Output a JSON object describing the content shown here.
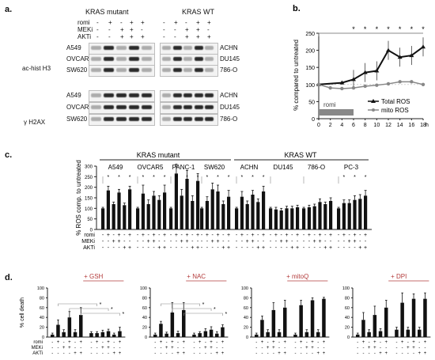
{
  "panel_a": {
    "letter": "a.",
    "mutant_header": "KRAS mutant",
    "wt_header": "KRAS WT",
    "treatments": [
      "romi",
      "MEKi",
      "AKTi"
    ],
    "section_labels": [
      "ac-hist H3",
      "γ H2AX"
    ],
    "mutant_lines": [
      "A549",
      "OVCAR5",
      "SW620"
    ],
    "wt_lines": [
      "ACHN",
      "DU145",
      "786-O"
    ],
    "signs_romi": [
      "-",
      "+",
      "-",
      "+",
      "+",
      "-",
      "+"
    ],
    "signs_meki": [
      "-",
      "-",
      "+",
      "+",
      "-",
      "+",
      "+"
    ],
    "signs_akti": [
      "-",
      "-",
      "+",
      "+",
      "+",
      "-",
      "+"
    ]
  },
  "chart_data": [
    {
      "panel": "b.",
      "type": "line",
      "ylabel": "% compared to untreated",
      "xunit": "h",
      "x": [
        0,
        2,
        4,
        6,
        8,
        10,
        12,
        14,
        16,
        18
      ],
      "xlim": [
        0,
        18
      ],
      "ylim": [
        0,
        250
      ],
      "yticks": [
        0,
        50,
        100,
        150,
        200,
        250
      ],
      "annotation": "romi",
      "significance": [
        "*",
        "*",
        "*",
        "*",
        "*",
        "*",
        "*",
        "*"
      ],
      "series": [
        {
          "name": "Total ROS",
          "values": [
            100,
            null,
            105,
            115,
            135,
            140,
            200,
            180,
            185,
            210
          ],
          "color": "#111111"
        },
        {
          "name": "mito ROS",
          "values": [
            100,
            90,
            88,
            90,
            95,
            98,
            102,
            108,
            108,
            100
          ],
          "color": "#888888"
        }
      ]
    },
    {
      "panel": "c.",
      "type": "bar",
      "ylabel": "% ROS comp. to untreated",
      "ylim": [
        0,
        300
      ],
      "yticks": [
        0,
        50,
        100,
        150,
        200,
        250,
        300
      ],
      "group_headers": [
        "KRAS mutant",
        "KRAS WT"
      ],
      "cell_lines": [
        "A549",
        "OVCAR5",
        "PANC-1",
        "SW620",
        "ACHN",
        "DU145",
        "786-O",
        "PC-3"
      ],
      "values": [
        [
          100,
          185,
          120,
          175,
          115,
          190
        ],
        [
          100,
          170,
          120,
          160,
          140,
          175
        ],
        [
          100,
          265,
          160,
          240,
          135,
          230
        ],
        [
          100,
          135,
          190,
          180,
          120,
          155
        ],
        [
          100,
          155,
          120,
          165,
          130,
          180
        ],
        [
          100,
          95,
          90,
          100,
          100,
          105
        ],
        [
          100,
          105,
          110,
          130,
          120,
          135
        ],
        [
          100,
          125,
          125,
          140,
          145,
          160
        ]
      ],
      "errors": [
        [
          5,
          20,
          10,
          15,
          10,
          15
        ],
        [
          5,
          40,
          20,
          20,
          20,
          35
        ],
        [
          5,
          45,
          30,
          40,
          25,
          35
        ],
        [
          5,
          20,
          30,
          30,
          15,
          30
        ],
        [
          5,
          25,
          15,
          20,
          15,
          25
        ],
        [
          5,
          10,
          10,
          10,
          10,
          10
        ],
        [
          5,
          10,
          10,
          15,
          10,
          15
        ],
        [
          5,
          15,
          15,
          20,
          20,
          25
        ]
      ],
      "treatments": [
        "romi",
        "MEKi",
        "AKTi"
      ],
      "signs_romi": [
        "-",
        "+",
        "-",
        "+",
        "-",
        "+"
      ],
      "signs_meki": [
        "-",
        "-",
        "+",
        "+",
        "-",
        "-"
      ],
      "signs_akti": [
        "-",
        "-",
        "-",
        "-",
        "+",
        "+"
      ]
    },
    {
      "panel": "d.",
      "type": "bar",
      "ylabel": "% cell death",
      "ylim": [
        0,
        100
      ],
      "yticks": [
        0,
        20,
        40,
        60,
        80,
        100
      ],
      "subpanels": [
        {
          "title": "+ GSH",
          "values": [
            5,
            25,
            10,
            40,
            10,
            45,
            8,
            8,
            10,
            12,
            5,
            12
          ],
          "errors": [
            3,
            10,
            5,
            12,
            5,
            15,
            3,
            3,
            4,
            4,
            3,
            8
          ]
        },
        {
          "title": "+ NAC",
          "values": [
            5,
            27,
            7,
            50,
            8,
            55,
            5,
            8,
            12,
            15,
            7,
            20
          ],
          "errors": [
            3,
            5,
            3,
            20,
            4,
            15,
            3,
            3,
            5,
            6,
            4,
            5
          ]
        },
        {
          "title": "+ mitoQ",
          "values": [
            5,
            35,
            10,
            55,
            10,
            60,
            5,
            65,
            10,
            75,
            10,
            78
          ],
          "errors": [
            3,
            8,
            5,
            15,
            5,
            15,
            3,
            10,
            5,
            5,
            5,
            3
          ]
        },
        {
          "title": "+ DPI",
          "values": [
            5,
            35,
            10,
            45,
            12,
            60,
            15,
            70,
            15,
            78,
            15,
            78
          ],
          "errors": [
            3,
            15,
            5,
            18,
            5,
            15,
            5,
            20,
            5,
            10,
            5,
            12
          ]
        }
      ],
      "treatments": [
        "romi",
        "MEKi",
        "AKTi"
      ],
      "signs_romi": [
        "-",
        "+",
        "-",
        "+",
        "-",
        "+",
        "-",
        "+",
        "-",
        "+",
        "-",
        "+"
      ],
      "signs_meki": [
        "-",
        "-",
        "+",
        "+",
        "-",
        "-",
        "-",
        "-",
        "+",
        "+",
        "-",
        "-"
      ],
      "signs_akti": [
        "-",
        "-",
        "-",
        "-",
        "+",
        "+",
        "-",
        "-",
        "-",
        "-",
        "+",
        "+"
      ]
    }
  ]
}
